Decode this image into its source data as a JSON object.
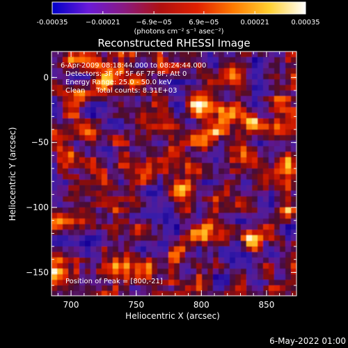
{
  "chart_data": {
    "type": "heatmap",
    "title": "Reconstructed RHESSI Image",
    "xlabel": "Heliocentric X (arcsec)",
    "ylabel": "Heliocentric Y (arcsec)",
    "xlim": [
      685,
      873
    ],
    "ylim": [
      -168,
      20
    ],
    "x_ticks": [
      700,
      750,
      800,
      850
    ],
    "y_ticks": [
      0,
      -50,
      -100,
      -150
    ],
    "colorbar": {
      "range": [
        -0.00035,
        0.00035
      ],
      "tick_values": [
        -0.00035,
        -0.00021,
        -6.9e-05,
        6.9e-05,
        0.00021,
        0.00035
      ],
      "tick_labels": [
        "-0.00035",
        "−0.00021",
        "−6.9e−05",
        "6.9e−05",
        "0.00021",
        "0.00035"
      ],
      "unit_label": "(photons cm⁻² s⁻¹ asec⁻²)",
      "colors": [
        "#0000c8",
        "#6a1ad8",
        "#8a1a80",
        "#b01010",
        "#e02000",
        "#ff7a00",
        "#ffd030",
        "#ffffff"
      ]
    },
    "annotations": {
      "time_range": "6-Apr-2009 08:18:44.000 to 08:24:44.000",
      "detectors": "Detectors: 3F 4F 5F 6F 7F 8F, Att 0",
      "energy": "Energy Range: 25.0 - 50.0 keV",
      "clean": "Clean     Total counts: 8.31E+03",
      "peak": "Position of Peak = [800,-21]"
    },
    "peak": {
      "x": 800,
      "y": -21
    },
    "bright_sources": [
      {
        "x": 800,
        "y": -21,
        "intensity": 1.0
      },
      {
        "x": 729,
        "y": -2,
        "intensity": 0.72
      },
      {
        "x": 692,
        "y": -110,
        "intensity": 0.62
      },
      {
        "x": 717,
        "y": -116,
        "intensity": 0.48
      },
      {
        "x": 865,
        "y": -103,
        "intensity": 0.55
      },
      {
        "x": 780,
        "y": -138,
        "intensity": 0.55
      },
      {
        "x": 735,
        "y": -150,
        "intensity": 0.52
      },
      {
        "x": 690,
        "y": -150,
        "intensity": 0.48
      },
      {
        "x": 835,
        "y": -123,
        "intensity": 0.42
      },
      {
        "x": 760,
        "y": -80,
        "intensity": 0.4
      },
      {
        "x": 850,
        "y": -75,
        "intensity": 0.38
      },
      {
        "x": 700,
        "y": -60,
        "intensity": 0.38
      },
      {
        "x": 835,
        "y": -35,
        "intensity": 0.36
      },
      {
        "x": 800,
        "y": -158,
        "intensity": 0.34
      }
    ]
  },
  "footer": {
    "date": "6-May-2022 01:00"
  }
}
